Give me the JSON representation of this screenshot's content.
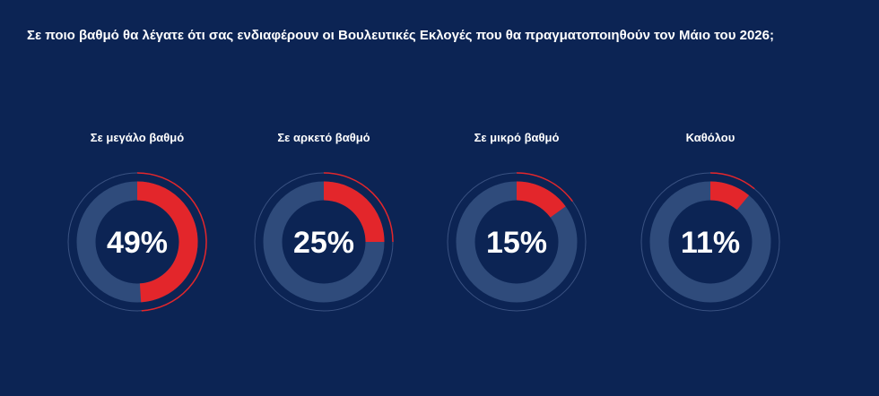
{
  "chart_data": {
    "type": "gauge",
    "title": "Σε ποιο βαθμό θα λέγατε ότι σας ενδιαφέρουν οι Βουλευτικές Εκλογές που θα πραγματοποιηθούν τον Μάιο του 2026;",
    "categories": [
      "Σε μεγάλο βαθμό",
      "Σε αρκετό βαθμό",
      "Σε μικρό βαθμό",
      "Καθόλου"
    ],
    "values": [
      49,
      25,
      15,
      11
    ],
    "value_labels": [
      "49%",
      "25%",
      "15%",
      "11%"
    ],
    "color": "#e3262b",
    "ylim": [
      0,
      100
    ]
  }
}
